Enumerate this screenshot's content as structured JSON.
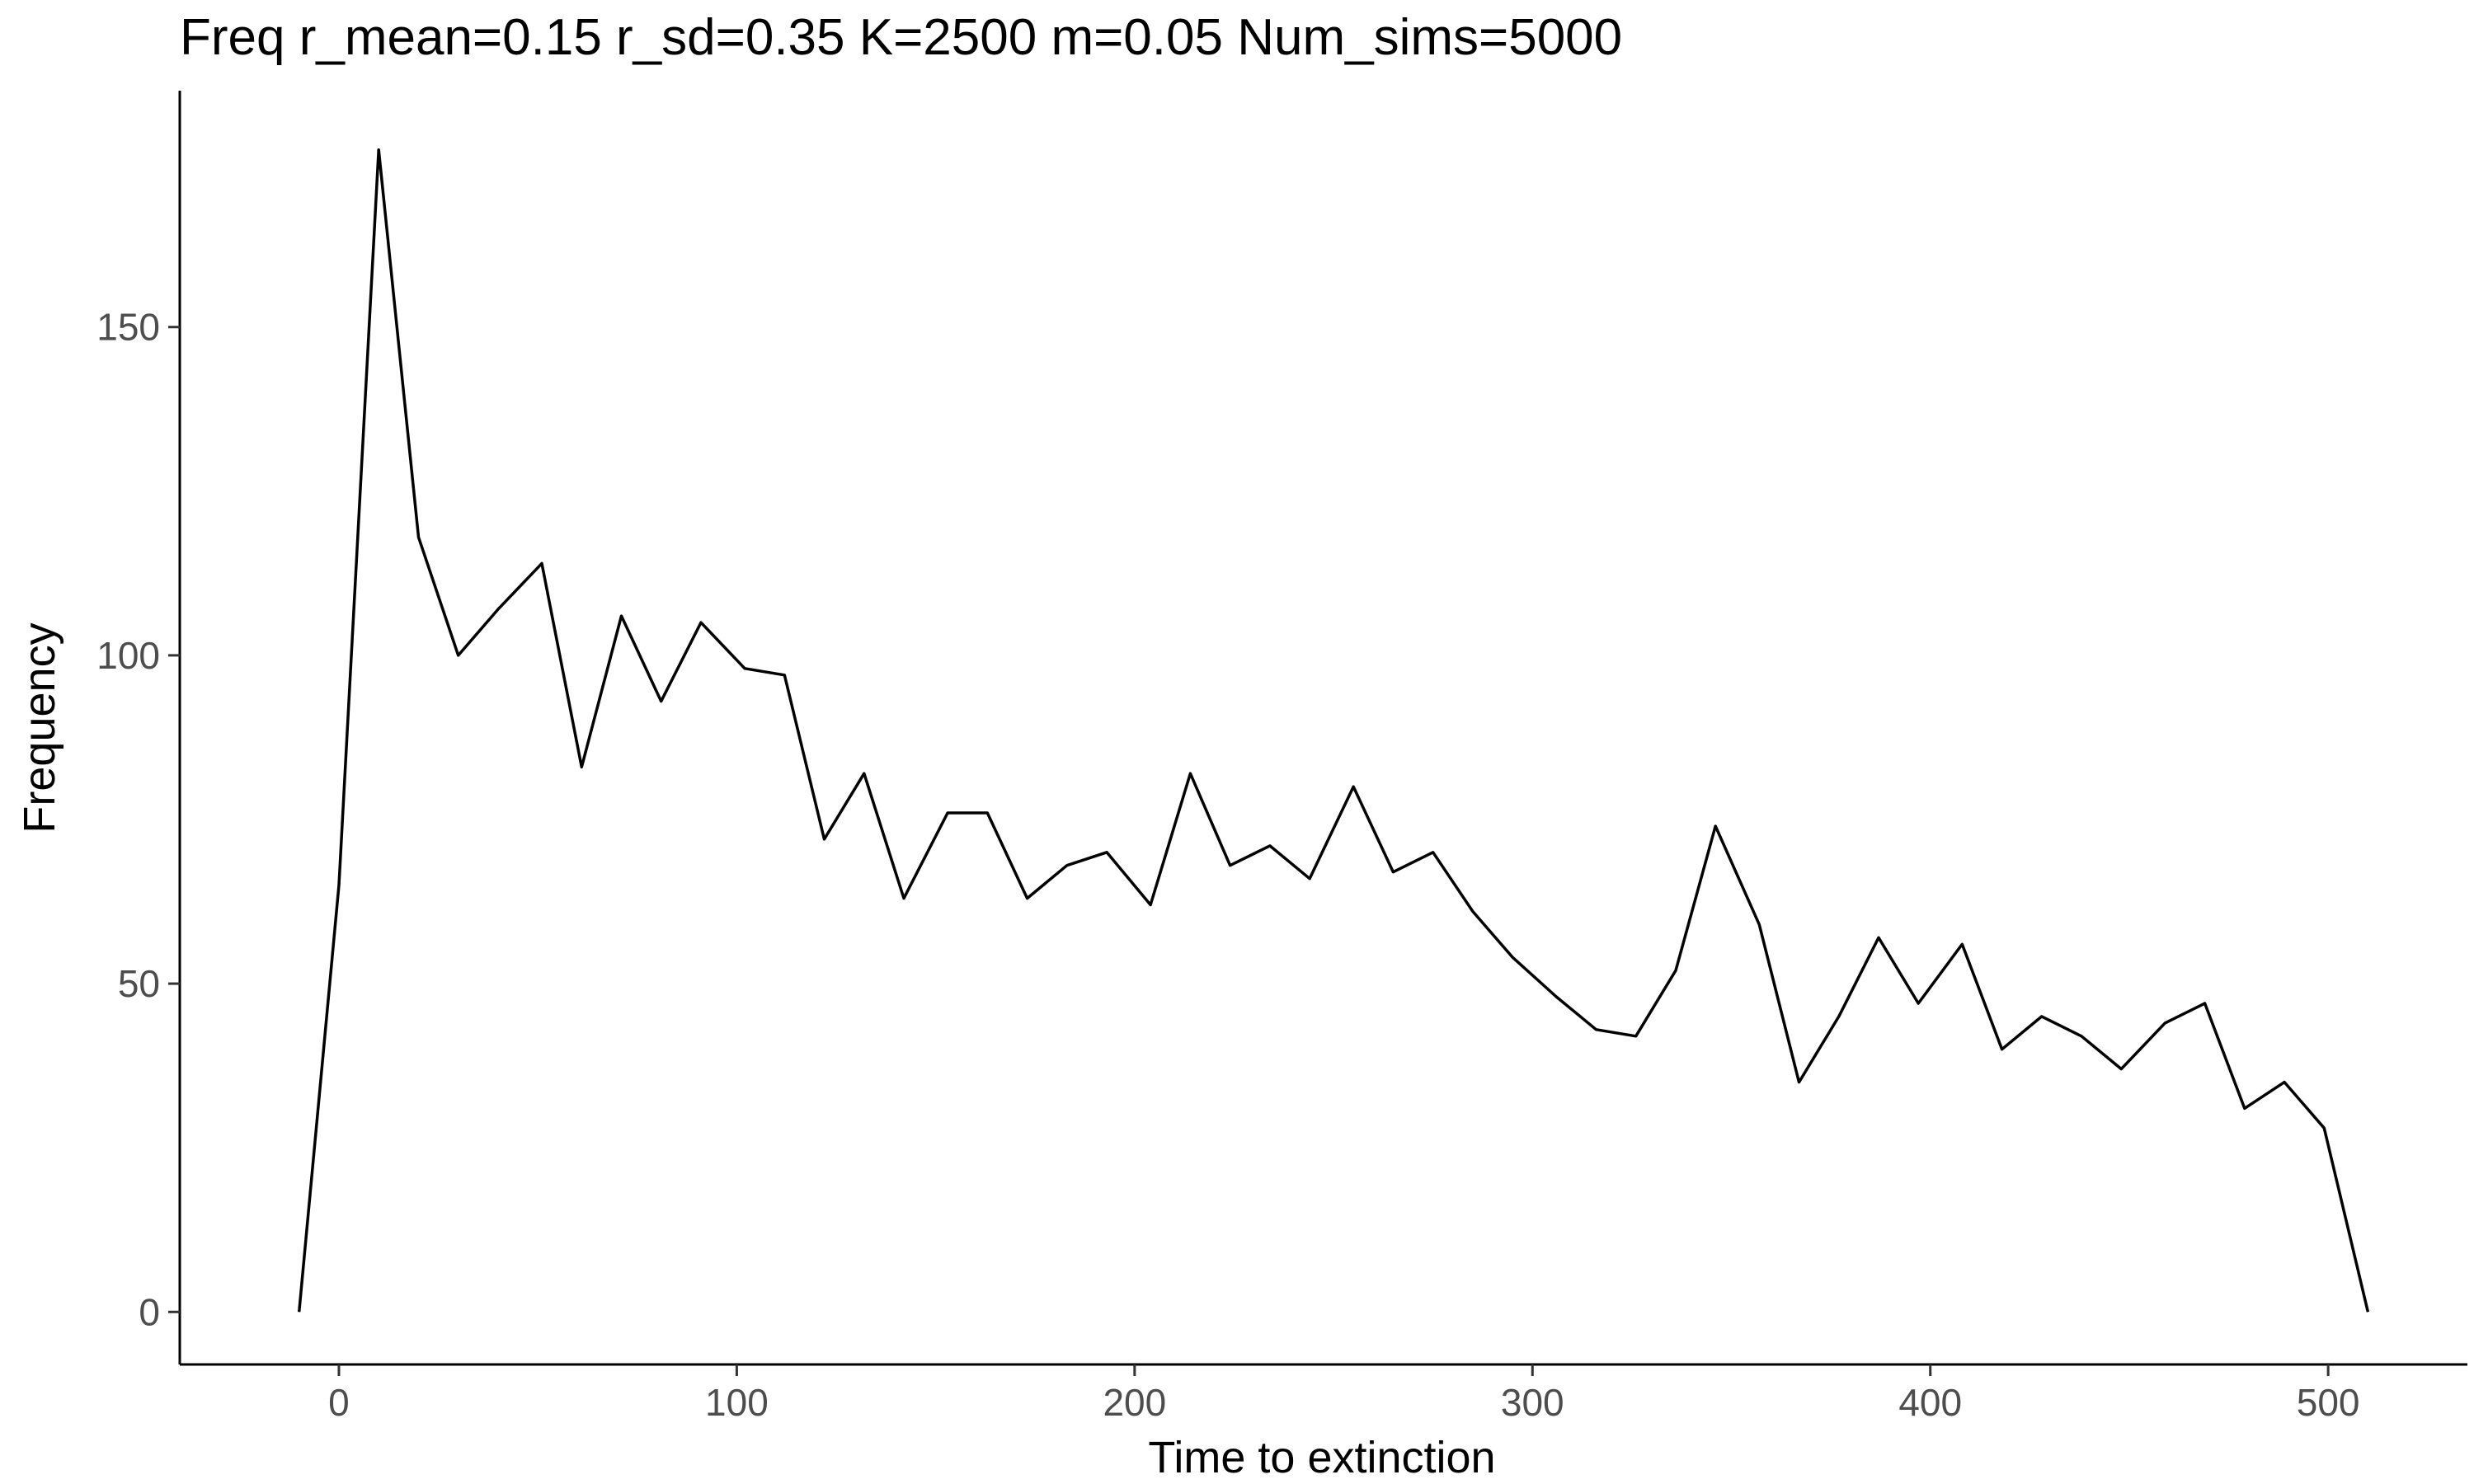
{
  "chart_data": {
    "type": "line",
    "title": "Freq r_mean=0.15 r_sd=0.35 K=2500 m=0.05 Num_sims=5000",
    "xlabel": "Time to extinction",
    "ylabel": "Frequency",
    "xlim": [
      -40,
      535
    ],
    "ylim": [
      -8,
      186
    ],
    "x_ticks": [
      0,
      100,
      200,
      300,
      400,
      500
    ],
    "y_ticks": [
      0,
      50,
      100,
      150
    ],
    "grid": false,
    "legend": "none",
    "series": [
      {
        "color": "#000000",
        "x": [
          -10,
          0,
          10,
          20,
          30,
          40,
          51,
          61,
          71,
          81,
          91,
          102,
          112,
          122,
          132,
          142,
          153,
          163,
          173,
          183,
          193,
          204,
          214,
          224,
          234,
          244,
          255,
          265,
          275,
          285,
          295,
          306,
          316,
          326,
          336,
          346,
          357,
          367,
          377,
          387,
          397,
          408,
          418,
          428,
          438,
          448,
          459,
          469,
          479,
          489,
          499,
          510
        ],
        "y": [
          0,
          65,
          177,
          118,
          100,
          107,
          114,
          83,
          106,
          93,
          105,
          98,
          97,
          72,
          82,
          63,
          76,
          76,
          63,
          68,
          70,
          62,
          82,
          68,
          71,
          66,
          80,
          67,
          70,
          61,
          54,
          48,
          43,
          42,
          52,
          74,
          59,
          35,
          45,
          57,
          47,
          56,
          40,
          45,
          42,
          37,
          44,
          47,
          31,
          35,
          28,
          0
        ]
      }
    ]
  }
}
